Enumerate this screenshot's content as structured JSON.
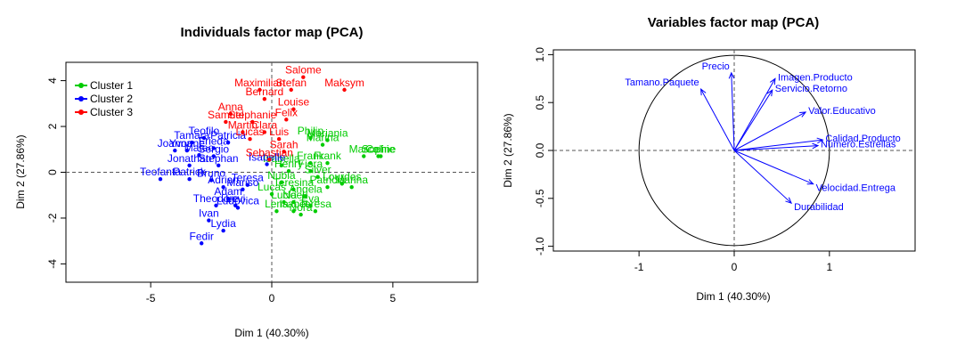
{
  "chart_data": [
    {
      "type": "scatter",
      "title": "Individuals factor map (PCA)",
      "xlabel": "Dim 1 (40.30%)",
      "ylabel": "Dim 2 (27.86%)",
      "xlim": [
        -8.5,
        8.5
      ],
      "ylim": [
        -4.8,
        4.8
      ],
      "xticks": [
        -5,
        0,
        5
      ],
      "yticks": [
        -4,
        -2,
        0,
        2,
        4
      ],
      "legend": {
        "position": "top-left",
        "entries": [
          {
            "name": "Cluster 1",
            "color": "#00cc00"
          },
          {
            "name": "Cluster 2",
            "color": "#0000ff"
          },
          {
            "name": "Cluster 3",
            "color": "#ff0000"
          }
        ]
      },
      "series": [
        {
          "name": "Cluster 1",
          "color": "#00cc00",
          "points": [
            {
              "x": 1.6,
              "y": 1.5,
              "label": "Philip"
            },
            {
              "x": 2.3,
              "y": 1.4,
              "label": "Mariania"
            },
            {
              "x": 2.1,
              "y": 1.2,
              "label": "Marina"
            },
            {
              "x": 3.8,
              "y": 0.7,
              "label": "Marco"
            },
            {
              "x": 4.4,
              "y": 0.7,
              "label": "Sophie"
            },
            {
              "x": 4.5,
              "y": 0.7,
              "label": "Celine"
            },
            {
              "x": 2.3,
              "y": 0.4,
              "label": "Frank"
            },
            {
              "x": 1.6,
              "y": 0.4,
              "label": "Frank"
            },
            {
              "x": 0.4,
              "y": 0.3,
              "label": "Isabella"
            },
            {
              "x": 0.7,
              "y": 0.05,
              "label": "Henry"
            },
            {
              "x": 1.6,
              "y": 0.05,
              "label": "Fiora"
            },
            {
              "x": 1.9,
              "y": -0.2,
              "label": "Silver"
            },
            {
              "x": 2.9,
              "y": -0.5,
              "label": "Lourdes"
            },
            {
              "x": 3.3,
              "y": -0.65,
              "label": "Marina"
            },
            {
              "x": 2.3,
              "y": -0.65,
              "label": "Patricia"
            },
            {
              "x": 0.4,
              "y": -0.45,
              "label": "Nubia"
            },
            {
              "x": 0.9,
              "y": -0.75,
              "label": "Teresina"
            },
            {
              "x": 0.0,
              "y": -0.95,
              "label": "Lucas"
            },
            {
              "x": 1.4,
              "y": -1.05,
              "label": "Angela"
            },
            {
              "x": 0.9,
              "y": -1.3,
              "label": "Noel"
            },
            {
              "x": 0.5,
              "y": -1.3,
              "label": "Lucia"
            },
            {
              "x": 1.6,
              "y": -1.45,
              "label": "Eva"
            },
            {
              "x": 0.9,
              "y": -1.7,
              "label": "Isabel"
            },
            {
              "x": 0.2,
              "y": -1.7,
              "label": "Lena"
            },
            {
              "x": 1.8,
              "y": -1.7,
              "label": "Teresa"
            },
            {
              "x": 1.2,
              "y": -1.85,
              "label": "Nora"
            }
          ]
        },
        {
          "name": "Cluster 2",
          "color": "#0000ff",
          "points": [
            {
              "x": -2.8,
              "y": 1.5,
              "label": "Teofilo"
            },
            {
              "x": -3.3,
              "y": 1.3,
              "label": "Tamara"
            },
            {
              "x": -1.8,
              "y": 1.3,
              "label": "Patricia"
            },
            {
              "x": -4.0,
              "y": 0.95,
              "label": "Joanna"
            },
            {
              "x": -3.5,
              "y": 0.95,
              "label": "Yvonne"
            },
            {
              "x": -2.4,
              "y": 1.05,
              "label": "Frieda"
            },
            {
              "x": -3.0,
              "y": 0.75,
              "label": "Mateo"
            },
            {
              "x": -2.4,
              "y": 0.7,
              "label": "Sergio"
            },
            {
              "x": -3.4,
              "y": 0.3,
              "label": "Jonathan"
            },
            {
              "x": -2.2,
              "y": 0.3,
              "label": "Stephan"
            },
            {
              "x": -4.6,
              "y": -0.3,
              "label": "Teofanta"
            },
            {
              "x": -3.4,
              "y": -0.3,
              "label": "Patrick"
            },
            {
              "x": -2.5,
              "y": -0.35,
              "label": "Bruno"
            },
            {
              "x": -0.2,
              "y": 0.35,
              "label": "Isabelle"
            },
            {
              "x": -1.0,
              "y": -0.55,
              "label": "Teresa"
            },
            {
              "x": -2.0,
              "y": -0.65,
              "label": "Adrian"
            },
            {
              "x": -1.2,
              "y": -0.75,
              "label": "Mariso"
            },
            {
              "x": -1.8,
              "y": -1.15,
              "label": "Adam"
            },
            {
              "x": -2.3,
              "y": -1.45,
              "label": "Theodore"
            },
            {
              "x": -1.5,
              "y": -1.45,
              "label": "Levi"
            },
            {
              "x": -1.4,
              "y": -1.55,
              "label": "Ludovica"
            },
            {
              "x": -2.6,
              "y": -2.1,
              "label": "Ivan"
            },
            {
              "x": -2.0,
              "y": -2.55,
              "label": "Lydia"
            },
            {
              "x": -2.9,
              "y": -3.1,
              "label": "Fedir"
            }
          ]
        },
        {
          "name": "Cluster 3",
          "color": "#ff0000",
          "points": [
            {
              "x": 1.3,
              "y": 4.15,
              "label": "Salome"
            },
            {
              "x": 3.0,
              "y": 3.6,
              "label": "Maksym"
            },
            {
              "x": -0.5,
              "y": 3.6,
              "label": "Maximilian"
            },
            {
              "x": 0.8,
              "y": 3.6,
              "label": "Stefan"
            },
            {
              "x": -0.3,
              "y": 3.2,
              "label": "Bernard"
            },
            {
              "x": 0.9,
              "y": 2.75,
              "label": "Louise"
            },
            {
              "x": -1.7,
              "y": 2.55,
              "label": "Anna"
            },
            {
              "x": -1.9,
              "y": 2.2,
              "label": "Samuel"
            },
            {
              "x": -0.8,
              "y": 2.2,
              "label": "Stephanie"
            },
            {
              "x": 0.6,
              "y": 2.3,
              "label": "Felix"
            },
            {
              "x": -1.2,
              "y": 1.75,
              "label": "Martin"
            },
            {
              "x": -0.3,
              "y": 1.75,
              "label": "Clara"
            },
            {
              "x": -0.9,
              "y": 1.45,
              "label": "Lucas"
            },
            {
              "x": 0.3,
              "y": 1.45,
              "label": "Luis"
            },
            {
              "x": 0.5,
              "y": 0.9,
              "label": "Sarah"
            },
            {
              "x": -0.1,
              "y": 0.55,
              "label": "Sebastian"
            }
          ]
        }
      ]
    },
    {
      "type": "vector",
      "title": "Variables factor map (PCA)",
      "xlabel": "Dim 1 (40.30%)",
      "ylabel": "Dim 2 (27.86%)",
      "xlim": [
        -1.9,
        1.9
      ],
      "ylim": [
        -1.05,
        1.05
      ],
      "xticks": [
        -1,
        0,
        1
      ],
      "yticks": [
        -1.0,
        -0.5,
        0.0,
        0.5,
        1.0
      ],
      "circle_radius": 1,
      "arrow_color": "#0000ff",
      "variables": [
        {
          "name": "Precio",
          "x": -0.03,
          "y": 0.81,
          "label_anchor": "end"
        },
        {
          "name": "Tamano.Paquete",
          "x": -0.35,
          "y": 0.64,
          "label_anchor": "end"
        },
        {
          "name": "Imagen.Producto",
          "x": 0.43,
          "y": 0.75,
          "label_anchor": "start"
        },
        {
          "name": "Servicio.Retorno",
          "x": 0.4,
          "y": 0.63,
          "label_anchor": "start"
        },
        {
          "name": "Valor.Educativo",
          "x": 0.75,
          "y": 0.4,
          "label_anchor": "start"
        },
        {
          "name": "Calidad.Producto",
          "x": 0.93,
          "y": 0.11,
          "label_anchor": "start"
        },
        {
          "name": "Numero.Estrellas",
          "x": 0.88,
          "y": 0.05,
          "label_anchor": "start"
        },
        {
          "name": "Velocidad.Entrega",
          "x": 0.83,
          "y": -0.35,
          "label_anchor": "start"
        },
        {
          "name": "Durabilidad",
          "x": 0.6,
          "y": -0.55,
          "label_anchor": "start"
        }
      ]
    }
  ]
}
